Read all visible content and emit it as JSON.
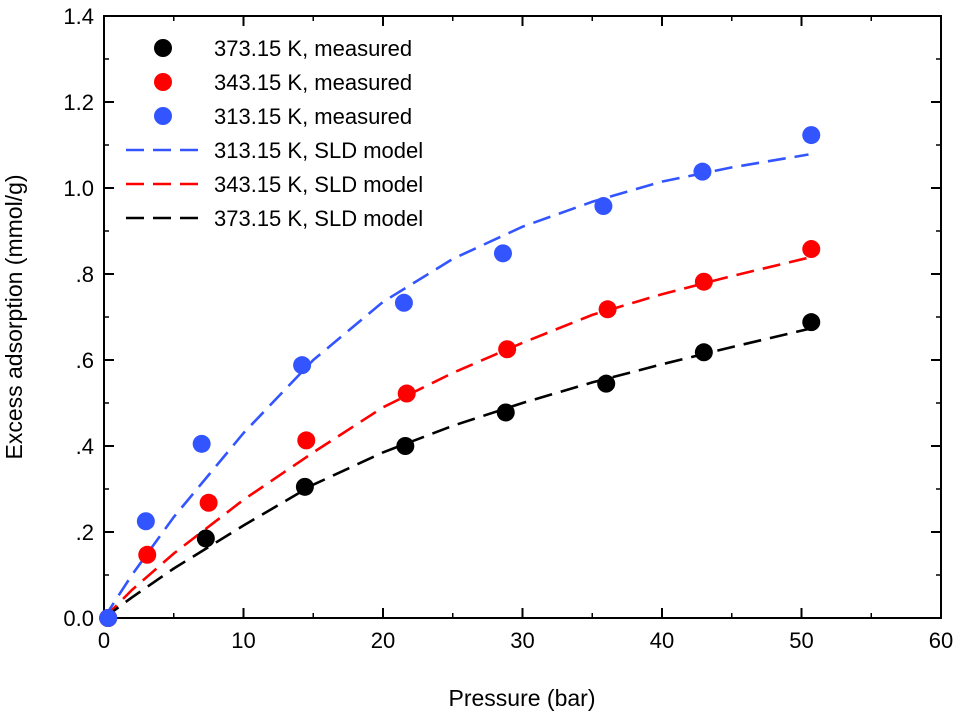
{
  "chart_data": {
    "type": "scatter",
    "xlabel": "Pressure (bar)",
    "ylabel": "Excess adsorption (mmol/g)",
    "xlim": [
      0,
      60
    ],
    "ylim": [
      0,
      1.4
    ],
    "x_ticks": [
      "0",
      "10",
      "20",
      "30",
      "40",
      "50",
      "60"
    ],
    "y_ticks": [
      "0.0",
      ".2",
      ".4",
      ".6",
      ".8",
      "1.0",
      "1.2",
      "1.4"
    ],
    "grid": false,
    "legend_position": "top-left",
    "series": [
      {
        "name": "373.15 K, measured",
        "kind": "points",
        "color": "#000000",
        "points": [
          [
            0.3,
            0.0
          ],
          [
            7.3,
            0.185
          ],
          [
            14.4,
            0.305
          ],
          [
            21.6,
            0.4
          ],
          [
            28.8,
            0.478
          ],
          [
            36.0,
            0.545
          ],
          [
            43.0,
            0.618
          ],
          [
            50.7,
            0.688
          ]
        ]
      },
      {
        "name": "343.15 K, measured",
        "kind": "points",
        "color": "#ff0000",
        "points": [
          [
            0.3,
            0.0
          ],
          [
            3.1,
            0.147
          ],
          [
            7.5,
            0.268
          ],
          [
            14.5,
            0.413
          ],
          [
            21.7,
            0.522
          ],
          [
            28.9,
            0.625
          ],
          [
            36.1,
            0.718
          ],
          [
            43.0,
            0.782
          ],
          [
            50.7,
            0.858
          ]
        ]
      },
      {
        "name": "313.15 K, measured",
        "kind": "points",
        "color": "#3355ff",
        "points": [
          [
            0.3,
            0.0
          ],
          [
            3.0,
            0.225
          ],
          [
            7.0,
            0.405
          ],
          [
            14.2,
            0.588
          ],
          [
            21.5,
            0.733
          ],
          [
            28.6,
            0.848
          ],
          [
            35.8,
            0.958
          ],
          [
            42.9,
            1.038
          ],
          [
            50.7,
            1.123
          ]
        ]
      },
      {
        "name": "313.15 K, SLD model",
        "kind": "line",
        "color": "#3355ff",
        "points": [
          [
            0,
            0.0
          ],
          [
            2,
            0.1
          ],
          [
            5,
            0.235
          ],
          [
            10,
            0.43
          ],
          [
            15,
            0.6
          ],
          [
            20,
            0.735
          ],
          [
            25,
            0.835
          ],
          [
            30,
            0.91
          ],
          [
            35,
            0.968
          ],
          [
            40,
            1.015
          ],
          [
            45,
            1.048
          ],
          [
            50.5,
            1.078
          ]
        ]
      },
      {
        "name": "343.15 K, SLD model",
        "kind": "line",
        "color": "#ff0000",
        "points": [
          [
            0,
            0.0
          ],
          [
            2,
            0.065
          ],
          [
            5,
            0.15
          ],
          [
            10,
            0.275
          ],
          [
            15,
            0.385
          ],
          [
            20,
            0.49
          ],
          [
            25,
            0.57
          ],
          [
            30,
            0.64
          ],
          [
            35,
            0.705
          ],
          [
            40,
            0.753
          ],
          [
            45,
            0.795
          ],
          [
            50.5,
            0.838
          ]
        ]
      },
      {
        "name": "373.15 K, SLD model",
        "kind": "line",
        "color": "#000000",
        "points": [
          [
            0,
            0.0
          ],
          [
            2,
            0.048
          ],
          [
            5,
            0.115
          ],
          [
            10,
            0.215
          ],
          [
            15,
            0.31
          ],
          [
            20,
            0.385
          ],
          [
            25,
            0.447
          ],
          [
            30,
            0.5
          ],
          [
            35,
            0.548
          ],
          [
            40,
            0.59
          ],
          [
            45,
            0.63
          ],
          [
            50.5,
            0.672
          ]
        ]
      }
    ],
    "legend_order": [
      "373.15 K, measured",
      "343.15 K, measured",
      "313.15 K, measured",
      "313.15 K, SLD model",
      "343.15 K, SLD model",
      "373.15 K, SLD model"
    ]
  }
}
